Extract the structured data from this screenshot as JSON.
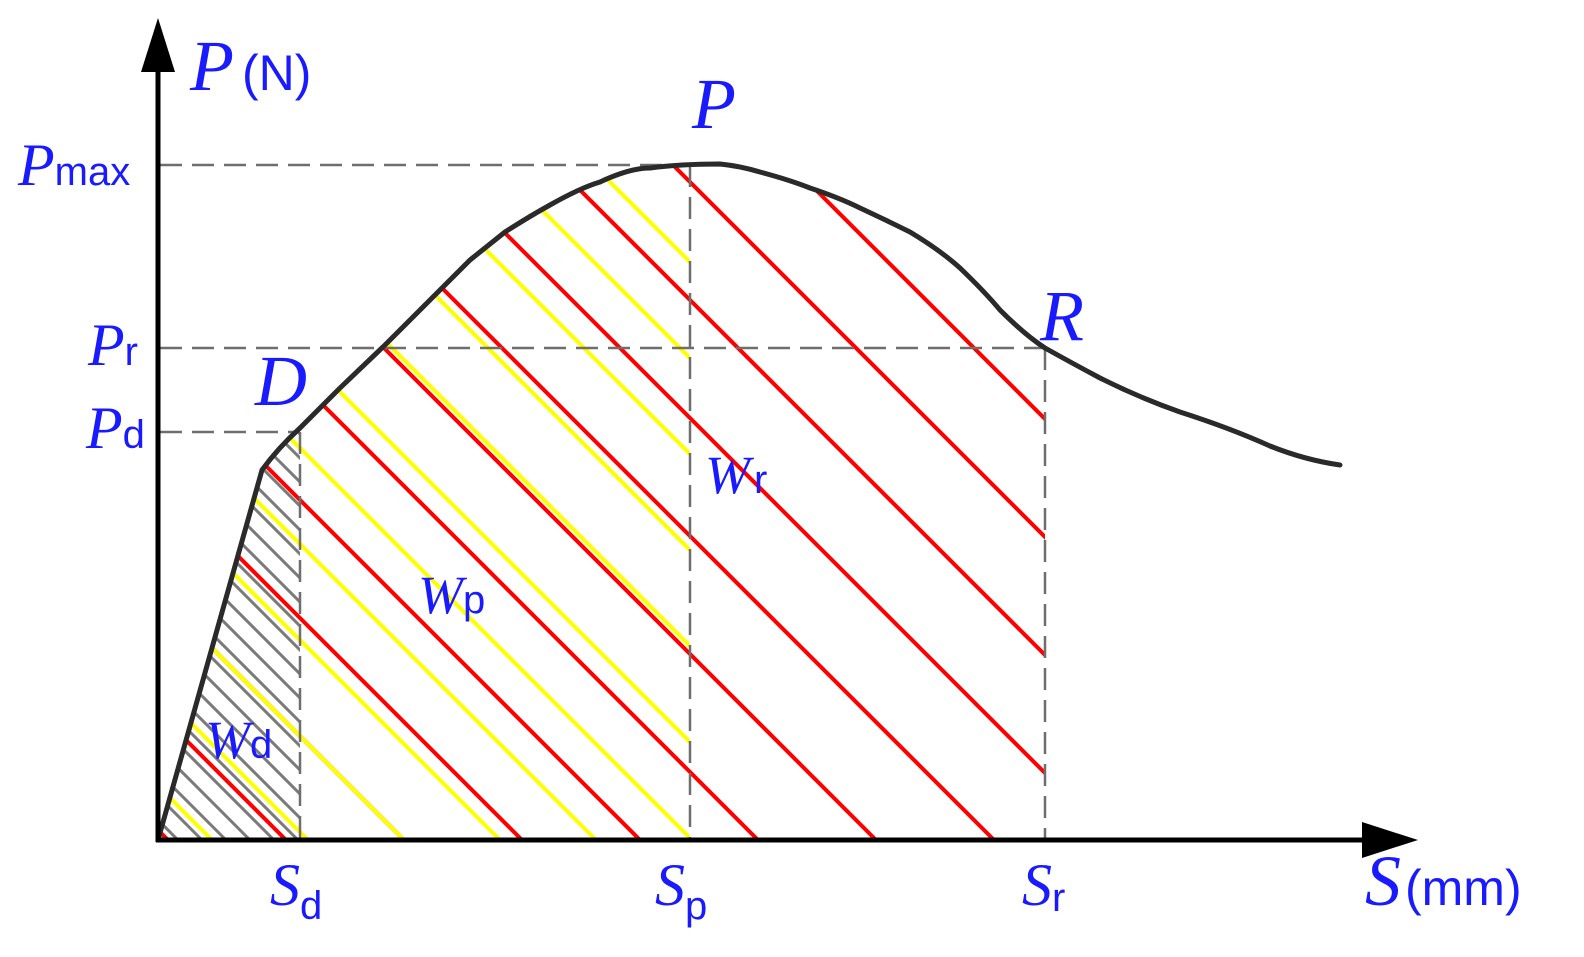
{
  "diagram": {
    "colors": {
      "curve": "#2a2a2a",
      "axes": "#000000",
      "guides": "#6e6e6e",
      "labels": "#1a1aff",
      "hatch_d": "#7a7a7a",
      "hatch_p": "#ffff00",
      "hatch_r": "#ff0000"
    },
    "y_axis": {
      "symbol": "P",
      "unit": "(N)"
    },
    "x_axis": {
      "symbol": "S",
      "unit": "(mm)"
    },
    "y_ticks": [
      {
        "symbol": "P",
        "sub": "max"
      },
      {
        "symbol": "P",
        "sub": "r"
      },
      {
        "symbol": "P",
        "sub": "d"
      }
    ],
    "x_ticks": [
      {
        "symbol": "S",
        "sub": "d"
      },
      {
        "symbol": "S",
        "sub": "p"
      },
      {
        "symbol": "S",
        "sub": "r"
      }
    ],
    "points": {
      "D": "D",
      "P": "P",
      "R": "R"
    },
    "areas": [
      {
        "symbol": "W",
        "sub": "d"
      },
      {
        "symbol": "W",
        "sub": "p"
      },
      {
        "symbol": "W",
        "sub": "r"
      }
    ]
  }
}
